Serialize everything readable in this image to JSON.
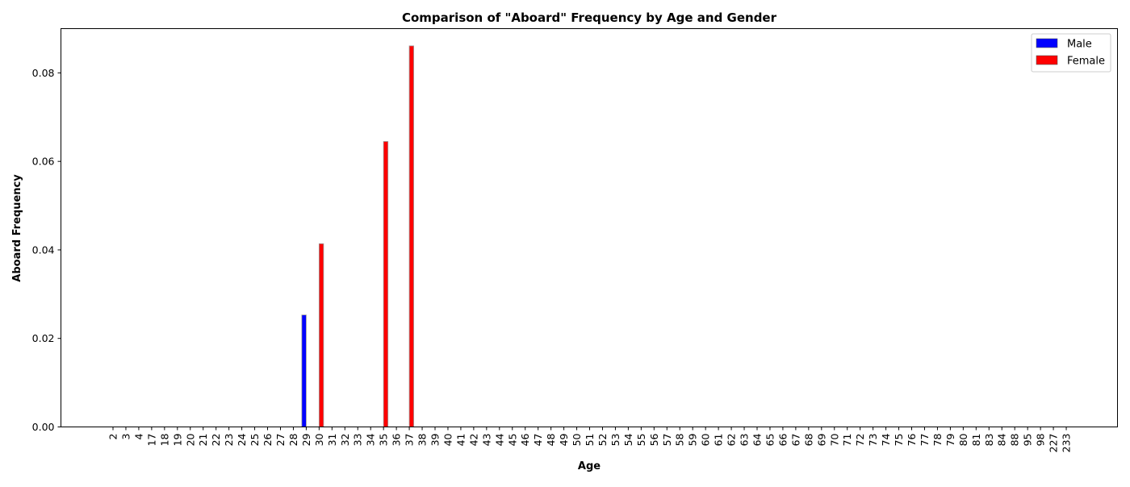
{
  "chart_data": {
    "type": "bar",
    "title": "Comparison of \"Aboard\" Frequency by Age and Gender",
    "xlabel": "Age",
    "ylabel": "Aboard Frequency",
    "ylim": [
      0,
      0.09
    ],
    "yticks": [
      "0.00",
      "0.02",
      "0.04",
      "0.06",
      "0.08"
    ],
    "grid": false,
    "legend_position": "top-right",
    "categories": [
      "2",
      "3",
      "4",
      "17",
      "18",
      "19",
      "20",
      "21",
      "22",
      "23",
      "24",
      "25",
      "26",
      "27",
      "28",
      "29",
      "30",
      "31",
      "32",
      "33",
      "34",
      "35",
      "36",
      "37",
      "38",
      "39",
      "40",
      "41",
      "42",
      "43",
      "44",
      "45",
      "46",
      "47",
      "48",
      "49",
      "50",
      "51",
      "52",
      "53",
      "54",
      "55",
      "56",
      "57",
      "58",
      "59",
      "60",
      "61",
      "62",
      "63",
      "64",
      "65",
      "66",
      "67",
      "68",
      "69",
      "70",
      "71",
      "72",
      "73",
      "74",
      "75",
      "76",
      "77",
      "78",
      "79",
      "80",
      "81",
      "83",
      "84",
      "88",
      "95",
      "98",
      "227",
      "233"
    ],
    "series": [
      {
        "name": "Male",
        "color": "#0000ff",
        "values": [
          0,
          0,
          0,
          0,
          0,
          0,
          0,
          0,
          0,
          0,
          0,
          0,
          0,
          0,
          0,
          0.0253,
          0,
          0,
          0,
          0,
          0,
          0,
          0,
          0,
          0,
          0,
          0,
          0,
          0,
          0,
          0,
          0,
          0,
          0,
          0,
          0,
          0,
          0,
          0,
          0,
          0,
          0,
          0,
          0,
          0,
          0,
          0,
          0,
          0,
          0,
          0,
          0,
          0,
          0,
          0,
          0,
          0,
          0,
          0,
          0,
          0,
          0,
          0,
          0,
          0,
          0,
          0,
          0,
          0,
          0,
          0,
          0,
          0,
          0,
          0
        ]
      },
      {
        "name": "Female",
        "color": "#ff0000",
        "values": [
          0,
          0,
          0,
          0,
          0,
          0,
          0,
          0,
          0,
          0,
          0,
          0,
          0,
          0,
          0,
          0,
          0.0414,
          0,
          0,
          0,
          0,
          0.0645,
          0,
          0.0861,
          0,
          0,
          0,
          0,
          0,
          0,
          0,
          0,
          0,
          0,
          0,
          0,
          0,
          0,
          0,
          0,
          0,
          0,
          0,
          0,
          0,
          0,
          0,
          0,
          0,
          0,
          0,
          0,
          0,
          0,
          0,
          0,
          0,
          0,
          0,
          0,
          0,
          0,
          0,
          0,
          0,
          0,
          0,
          0,
          0,
          0,
          0,
          0,
          0,
          0,
          0
        ]
      }
    ]
  }
}
